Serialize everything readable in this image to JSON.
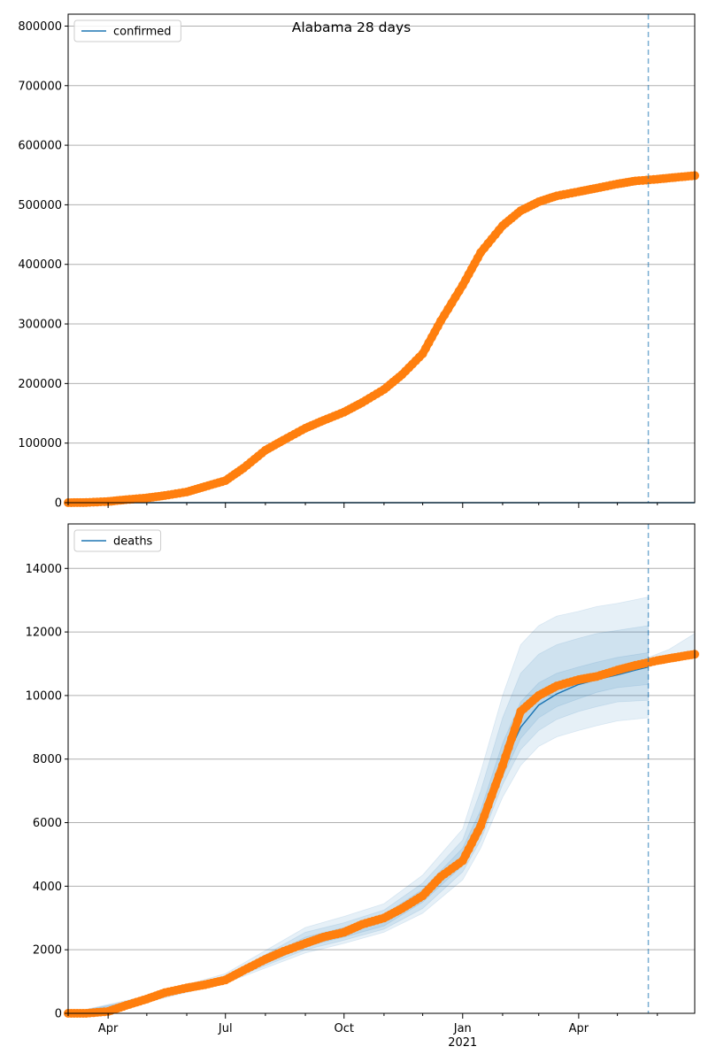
{
  "chart_data": [
    {
      "type": "line",
      "title": "Alabama 28 days",
      "legend": {
        "entries": [
          "confirmed"
        ],
        "placement": "top-left"
      },
      "ylim": [
        0,
        820000
      ],
      "yticks": [
        0,
        100000,
        200000,
        300000,
        400000,
        500000,
        600000,
        700000,
        800000
      ],
      "xlim": [
        "2020-03-01",
        "2021-06-30"
      ],
      "grid": "y",
      "forecast_start": "2021-05-25",
      "colors": {
        "observed": "#ff7f0e",
        "model": "#1f77b4",
        "band": "#1f77b4"
      },
      "series": [
        {
          "name": "confirmed",
          "kind": "model-line",
          "x": [
            "2020-03-01",
            "2021-05-25",
            "2021-06-30"
          ],
          "y": [
            0,
            0,
            0
          ]
        },
        {
          "kind": "observed",
          "x": [
            "2020-03-01",
            "2020-03-15",
            "2020-04-01",
            "2020-04-15",
            "2020-05-01",
            "2020-05-15",
            "2020-06-01",
            "2020-06-15",
            "2020-07-01",
            "2020-07-15",
            "2020-08-01",
            "2020-08-15",
            "2020-09-01",
            "2020-09-15",
            "2020-10-01",
            "2020-10-15",
            "2020-11-01",
            "2020-11-15",
            "2020-12-01",
            "2020-12-15",
            "2021-01-01",
            "2021-01-15",
            "2021-02-01",
            "2021-02-15",
            "2021-03-01",
            "2021-03-15",
            "2021-04-01",
            "2021-04-15",
            "2021-05-01",
            "2021-05-15",
            "2021-06-01",
            "2021-06-15",
            "2021-06-30"
          ],
          "y": [
            0,
            300,
            2000,
            5000,
            8000,
            12000,
            18000,
            27000,
            37000,
            58000,
            88000,
            105000,
            125000,
            138000,
            152000,
            168000,
            190000,
            215000,
            250000,
            305000,
            365000,
            420000,
            465000,
            490000,
            505000,
            515000,
            522000,
            528000,
            535000,
            540000,
            543000,
            546000,
            549000
          ]
        }
      ]
    },
    {
      "type": "line",
      "legend": {
        "entries": [
          "deaths"
        ],
        "placement": "top-left"
      },
      "ylim": [
        0,
        15400
      ],
      "yticks": [
        0,
        2000,
        4000,
        6000,
        8000,
        10000,
        12000,
        14000
      ],
      "xlim": [
        "2020-03-01",
        "2021-06-30"
      ],
      "xticks": [
        "2020-04-01",
        "2020-07-01",
        "2020-10-01",
        "2021-01-01",
        "2021-04-01"
      ],
      "xticklabels": [
        "Apr",
        "Jul",
        "Oct",
        "Jan",
        "Apr"
      ],
      "xlabel_year": "2021",
      "grid": "y",
      "forecast_start": "2021-05-25",
      "colors": {
        "observed": "#ff7f0e",
        "model": "#1f77b4",
        "band": "#1f77b4"
      },
      "series": [
        {
          "name": "deaths",
          "kind": "model-line",
          "x": [
            "2021-01-01",
            "2021-01-15",
            "2021-02-01",
            "2021-02-15",
            "2021-03-01",
            "2021-03-15",
            "2021-04-01",
            "2021-04-15",
            "2021-05-01",
            "2021-05-15",
            "2021-05-25"
          ],
          "y": [
            4900,
            6000,
            7800,
            9000,
            9700,
            10050,
            10350,
            10500,
            10650,
            10800,
            10900
          ]
        },
        {
          "kind": "observed",
          "x": [
            "2020-03-01",
            "2020-03-15",
            "2020-04-01",
            "2020-04-15",
            "2020-05-01",
            "2020-05-15",
            "2020-06-01",
            "2020-06-15",
            "2020-07-01",
            "2020-07-15",
            "2020-08-01",
            "2020-08-15",
            "2020-09-01",
            "2020-09-15",
            "2020-10-01",
            "2020-10-15",
            "2020-11-01",
            "2020-11-15",
            "2020-12-01",
            "2020-12-15",
            "2021-01-01",
            "2021-01-15",
            "2021-02-01",
            "2021-02-15",
            "2021-03-01",
            "2021-03-15",
            "2021-04-01",
            "2021-04-15",
            "2021-05-01",
            "2021-05-15",
            "2021-06-01",
            "2021-06-15",
            "2021-06-30"
          ],
          "y": [
            0,
            0,
            60,
            250,
            450,
            650,
            800,
            900,
            1050,
            1350,
            1700,
            1950,
            2200,
            2400,
            2550,
            2800,
            3000,
            3300,
            3700,
            4300,
            4800,
            5900,
            7800,
            9500,
            10000,
            10300,
            10500,
            10600,
            10800,
            10950,
            11100,
            11200,
            11300
          ]
        }
      ],
      "bands": [
        {
          "x": [
            "2020-03-01",
            "2020-05-01",
            "2020-07-01",
            "2020-09-01",
            "2020-10-01",
            "2020-11-01",
            "2020-12-01",
            "2021-01-01",
            "2021-01-15",
            "2021-02-01",
            "2021-02-15",
            "2021-03-01",
            "2021-03-15",
            "2021-04-01",
            "2021-04-15",
            "2021-05-01",
            "2021-05-25"
          ],
          "low": [
            0,
            350,
            950,
            1900,
            2200,
            2550,
            3150,
            4200,
            5200,
            6800,
            7800,
            8400,
            8700,
            8900,
            9050,
            9200,
            9300
          ],
          "high": [
            0,
            550,
            1250,
            2700,
            3050,
            3450,
            4350,
            5800,
            7600,
            10000,
            11600,
            12200,
            12500,
            12650,
            12800,
            12900,
            13100
          ]
        },
        {
          "x": [
            "2020-03-01",
            "2020-05-01",
            "2020-07-01",
            "2020-09-01",
            "2020-10-01",
            "2020-11-01",
            "2020-12-01",
            "2021-01-01",
            "2021-01-15",
            "2021-02-01",
            "2021-02-15",
            "2021-03-01",
            "2021-03-15",
            "2021-04-01",
            "2021-04-15",
            "2021-05-01",
            "2021-05-25"
          ],
          "low": [
            0,
            400,
            1000,
            2000,
            2300,
            2650,
            3300,
            4450,
            5450,
            7200,
            8300,
            8900,
            9250,
            9500,
            9650,
            9800,
            9850
          ],
          "high": [
            0,
            500,
            1150,
            2550,
            2850,
            3250,
            4100,
            5450,
            7000,
            9300,
            10700,
            11300,
            11600,
            11800,
            11950,
            12050,
            12200
          ]
        },
        {
          "x": [
            "2020-03-01",
            "2020-05-01",
            "2020-07-01",
            "2020-09-01",
            "2020-10-01",
            "2020-11-01",
            "2020-12-01",
            "2021-01-01",
            "2021-01-15",
            "2021-02-01",
            "2021-02-15",
            "2021-03-01",
            "2021-03-15",
            "2021-04-01",
            "2021-04-15",
            "2021-05-01",
            "2021-05-25"
          ],
          "low": [
            0,
            430,
            1030,
            2100,
            2400,
            2750,
            3500,
            4650,
            5700,
            7450,
            8650,
            9300,
            9650,
            9900,
            10100,
            10250,
            10350
          ],
          "high": [
            0,
            470,
            1100,
            2400,
            2700,
            3100,
            3900,
            5200,
            6400,
            8500,
            9800,
            10400,
            10700,
            10900,
            11050,
            11200,
            11350
          ]
        },
        {
          "x": [
            "2021-05-25",
            "2021-06-10",
            "2021-06-30"
          ],
          "low": [
            11000,
            11100,
            11200
          ],
          "high": [
            11200,
            11450,
            11950
          ]
        }
      ]
    }
  ]
}
